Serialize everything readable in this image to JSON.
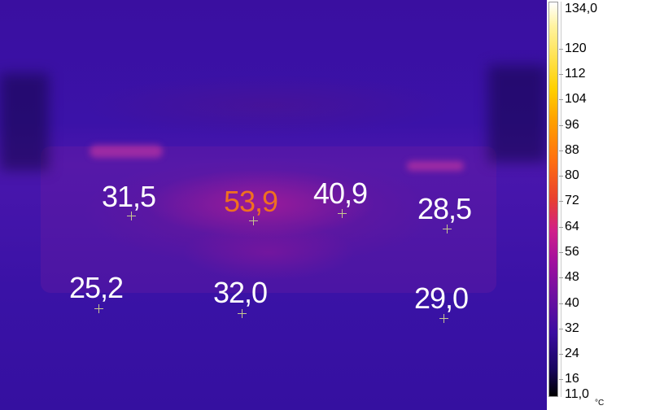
{
  "measurements": [
    {
      "value": "31,5",
      "color": "#ffffff"
    },
    {
      "value": "53,9",
      "color": "#f07020"
    },
    {
      "value": "40,9",
      "color": "#ffffff"
    },
    {
      "value": "28,5",
      "color": "#ffffff"
    },
    {
      "value": "25,2",
      "color": "#ffffff"
    },
    {
      "value": "32,0",
      "color": "#ffffff"
    },
    {
      "value": "29,0",
      "color": "#ffffff"
    }
  ],
  "scale": {
    "max": "134,0",
    "min": "11,0",
    "unit": "°C",
    "ticks": [
      "120",
      "112",
      "104",
      "96",
      "88",
      "80",
      "72",
      "64",
      "56",
      "48",
      "40",
      "32",
      "24",
      "16"
    ],
    "palette": "iron"
  }
}
